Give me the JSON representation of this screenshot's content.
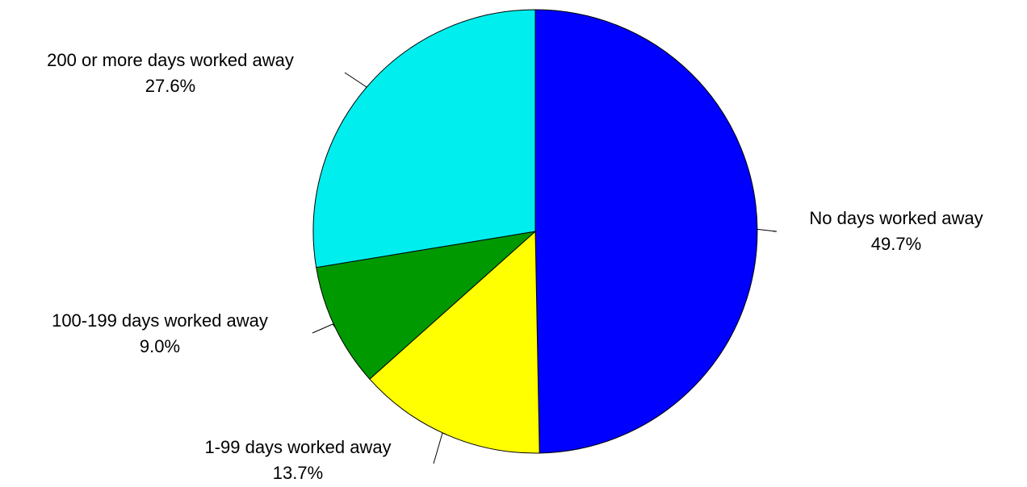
{
  "chart_data": {
    "type": "pie",
    "title": "",
    "slices": [
      {
        "label": "No days worked away",
        "value": 49.7,
        "display": "49.7%",
        "color": "#0000FF"
      },
      {
        "label": "1-99 days worked away",
        "value": 13.7,
        "display": "13.7%",
        "color": "#FFFF00"
      },
      {
        "label": "100-199 days worked away",
        "value": 9.0,
        "display": "9.0%",
        "color": "#009900"
      },
      {
        "label": "200 or more days worked away",
        "value": 27.6,
        "display": "27.6%",
        "color": "#00EEEE"
      }
    ],
    "start_angle": "12 o'clock",
    "direction": "clockwise",
    "label_style": "outside with leader lines",
    "legend": "none"
  }
}
